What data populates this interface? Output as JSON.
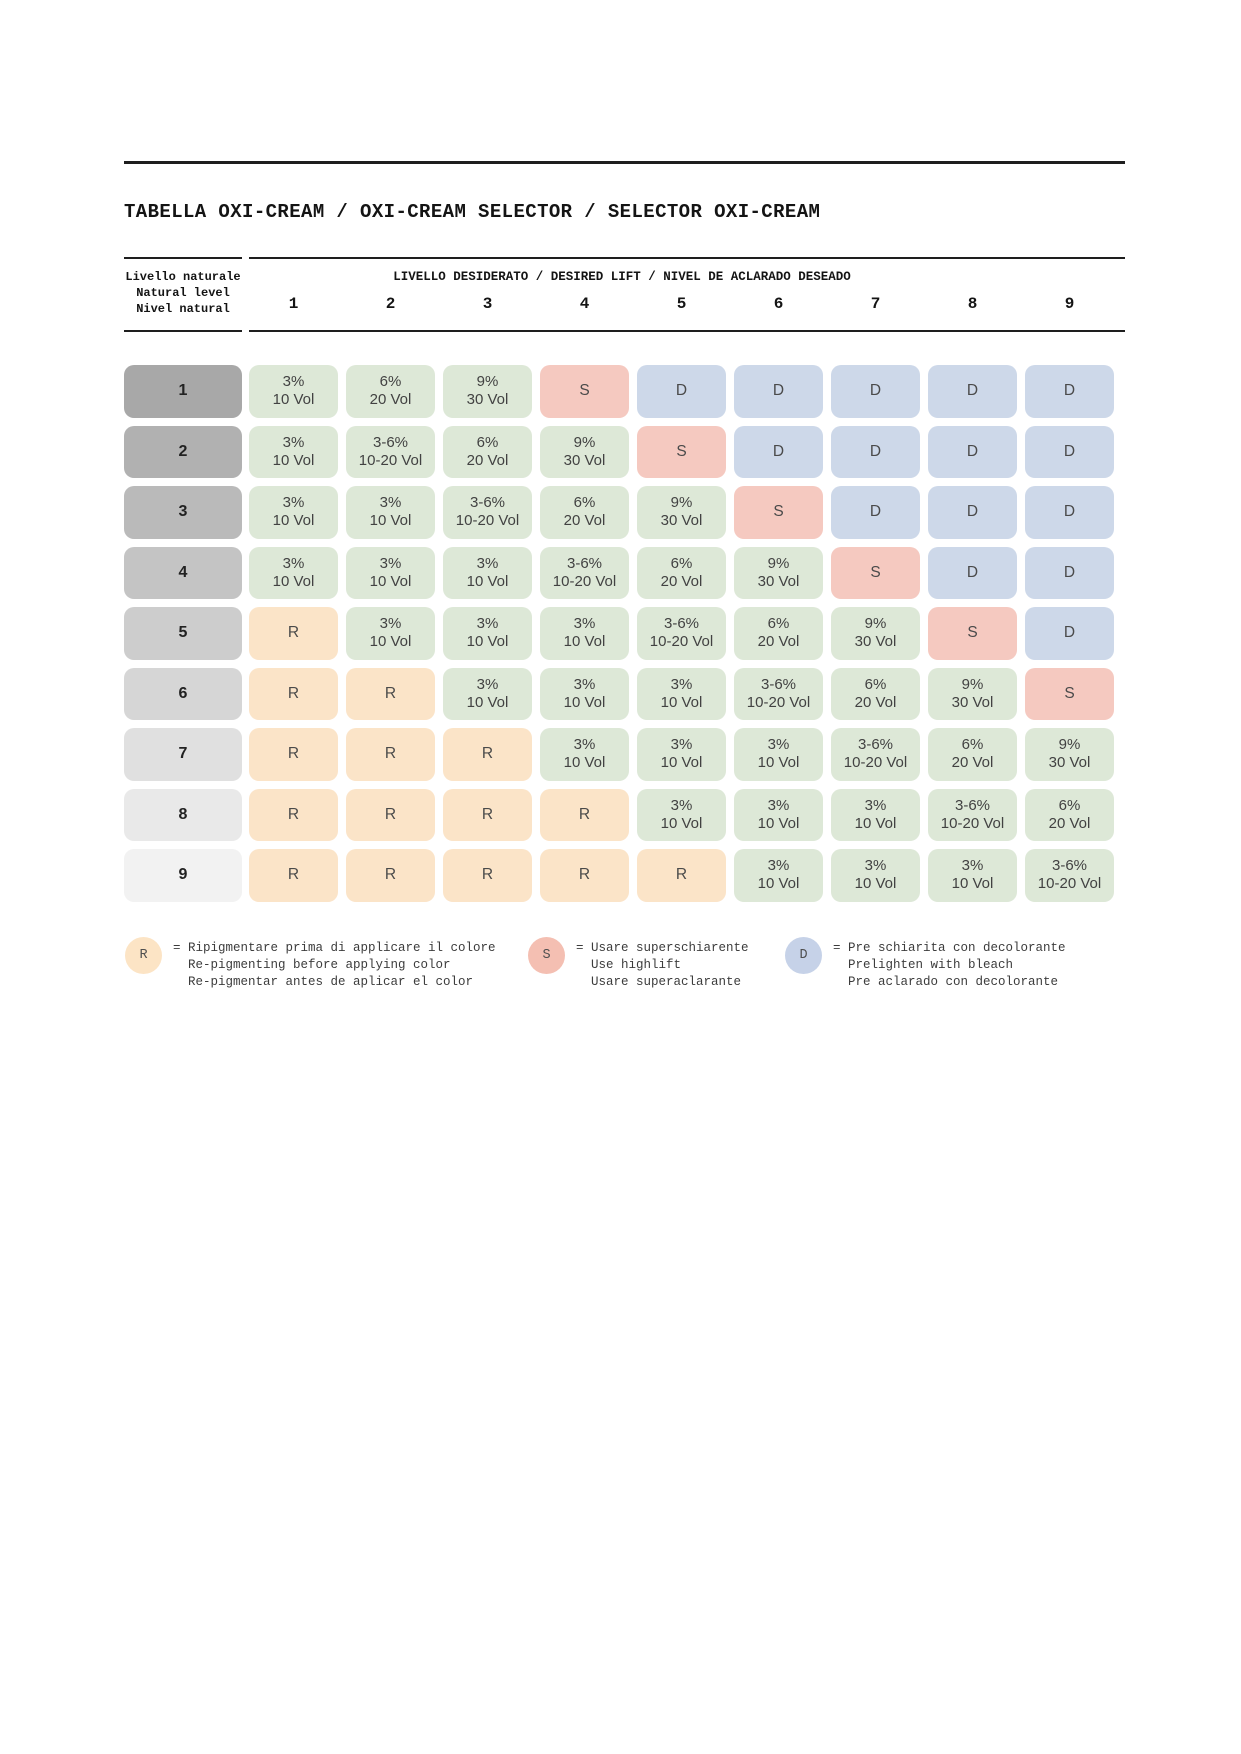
{
  "title": "TABELLA OXI-CREAM / OXI-CREAM SELECTOR / SELECTOR OXI-CREAM",
  "header": {
    "row_axis_lines": [
      "Livello naturale",
      "Natural level",
      "Nivel natural"
    ],
    "col_axis_label": "LIVELLO DESIDERATO / DESIRED LIFT / NIVEL DE ACLARADO DESEADO",
    "col_numbers": [
      "1",
      "2",
      "3",
      "4",
      "5",
      "6",
      "7",
      "8",
      "9"
    ]
  },
  "table": {
    "rows": [
      {
        "level": "1",
        "cells": [
          [
            "3%",
            "10 Vol"
          ],
          [
            "6%",
            "20 Vol"
          ],
          [
            "9%",
            "30 Vol"
          ],
          [
            "S"
          ],
          [
            "D"
          ],
          [
            "D"
          ],
          [
            "D"
          ],
          [
            "D"
          ],
          [
            "D"
          ]
        ]
      },
      {
        "level": "2",
        "cells": [
          [
            "3%",
            "10 Vol"
          ],
          [
            "3-6%",
            "10-20 Vol"
          ],
          [
            "6%",
            "20 Vol"
          ],
          [
            "9%",
            "30 Vol"
          ],
          [
            "S"
          ],
          [
            "D"
          ],
          [
            "D"
          ],
          [
            "D"
          ],
          [
            "D"
          ]
        ]
      },
      {
        "level": "3",
        "cells": [
          [
            "3%",
            "10 Vol"
          ],
          [
            "3%",
            "10 Vol"
          ],
          [
            "3-6%",
            "10-20 Vol"
          ],
          [
            "6%",
            "20 Vol"
          ],
          [
            "9%",
            "30 Vol"
          ],
          [
            "S"
          ],
          [
            "D"
          ],
          [
            "D"
          ],
          [
            "D"
          ]
        ]
      },
      {
        "level": "4",
        "cells": [
          [
            "3%",
            "10 Vol"
          ],
          [
            "3%",
            "10 Vol"
          ],
          [
            "3%",
            "10 Vol"
          ],
          [
            "3-6%",
            "10-20 Vol"
          ],
          [
            "6%",
            "20 Vol"
          ],
          [
            "9%",
            "30 Vol"
          ],
          [
            "S"
          ],
          [
            "D"
          ],
          [
            "D"
          ]
        ]
      },
      {
        "level": "5",
        "cells": [
          [
            "R"
          ],
          [
            "3%",
            "10 Vol"
          ],
          [
            "3%",
            "10 Vol"
          ],
          [
            "3%",
            "10 Vol"
          ],
          [
            "3-6%",
            "10-20 Vol"
          ],
          [
            "6%",
            "20 Vol"
          ],
          [
            "9%",
            "30 Vol"
          ],
          [
            "S"
          ],
          [
            "D"
          ]
        ]
      },
      {
        "level": "6",
        "cells": [
          [
            "R"
          ],
          [
            "R"
          ],
          [
            "3%",
            "10 Vol"
          ],
          [
            "3%",
            "10 Vol"
          ],
          [
            "3%",
            "10 Vol"
          ],
          [
            "3-6%",
            "10-20 Vol"
          ],
          [
            "6%",
            "20 Vol"
          ],
          [
            "9%",
            "30 Vol"
          ],
          [
            "S"
          ]
        ]
      },
      {
        "level": "7",
        "cells": [
          [
            "R"
          ],
          [
            "R"
          ],
          [
            "R"
          ],
          [
            "3%",
            "10 Vol"
          ],
          [
            "3%",
            "10 Vol"
          ],
          [
            "3%",
            "10 Vol"
          ],
          [
            "3-6%",
            "10-20 Vol"
          ],
          [
            "6%",
            "20 Vol"
          ],
          [
            "9%",
            "30 Vol"
          ]
        ]
      },
      {
        "level": "8",
        "cells": [
          [
            "R"
          ],
          [
            "R"
          ],
          [
            "R"
          ],
          [
            "R"
          ],
          [
            "3%",
            "10 Vol"
          ],
          [
            "3%",
            "10 Vol"
          ],
          [
            "3%",
            "10 Vol"
          ],
          [
            "3-6%",
            "10-20 Vol"
          ],
          [
            "6%",
            "20 Vol"
          ]
        ]
      },
      {
        "level": "9",
        "cells": [
          [
            "R"
          ],
          [
            "R"
          ],
          [
            "R"
          ],
          [
            "R"
          ],
          [
            "R"
          ],
          [
            "3%",
            "10 Vol"
          ],
          [
            "3%",
            "10 Vol"
          ],
          [
            "3%",
            "10 Vol"
          ],
          [
            "3-6%",
            "10-20 Vol"
          ]
        ]
      }
    ]
  },
  "legend": [
    {
      "symbol": "R",
      "lines": [
        "= Ripigmentare prima di applicare il colore",
        "Re-pigmenting before applying color",
        "Re-pigmentar antes de aplicar el color"
      ]
    },
    {
      "symbol": "S",
      "lines": [
        "= Usare superschiarente",
        "Use highlift",
        "Usare superaclarante"
      ]
    },
    {
      "symbol": "D",
      "lines": [
        "= Pre schiarita con decolorante",
        "Prelighten with bleach",
        "Pre aclarado con decolorante"
      ]
    }
  ],
  "colors": {
    "cell_pct": "#dde8d7",
    "cell_S": "#f5c9c0",
    "cell_D": "#cdd8e9",
    "cell_R": "#fbe4c8",
    "legend_R": "#fce4c5",
    "legend_S": "#f4bfb2",
    "legend_D": "#c6d2e8",
    "level_shades": [
      "#a8a8a8",
      "#b1b1b1",
      "#bababa",
      "#c4c4c4",
      "#cdcdcd",
      "#d6d6d6",
      "#e0e0e0",
      "#e9e9e9",
      "#f2f2f2"
    ],
    "rule": "#1e1e1e"
  }
}
